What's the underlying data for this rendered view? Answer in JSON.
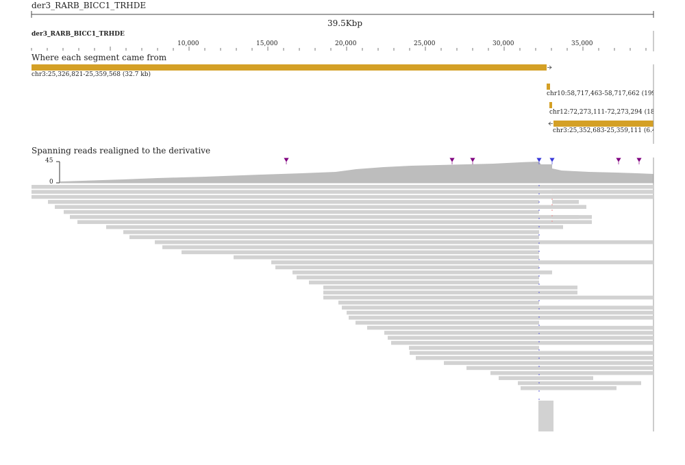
{
  "view_title": "der3_RARB_BICC1_TRHDE",
  "span_label": "39.5Kbp",
  "ref_track": {
    "name": "der3_RARB_BICC1_TRHDE",
    "ticks": [
      "10,000",
      "15,000",
      "20,000",
      "25,000",
      "30,000",
      "35,000"
    ]
  },
  "origin_track": {
    "label": "Where each segment came from",
    "segments": [
      {
        "label": "chr3:25,326,821-25,359,568 (32.7 kb)",
        "strand": "+"
      },
      {
        "label": "chr10:58,717,463-58,717,662 (199",
        "strand": "+"
      },
      {
        "label": "chr12:72,273,111-72,273,294 (183",
        "strand": "+"
      },
      {
        "label": "chr3:25,352,683-25,359,111 (6.4",
        "strand": "-"
      }
    ]
  },
  "reads_track": {
    "label": "Spanning reads realigned to the derivative",
    "coverage_max": "45",
    "coverage_min": "0"
  },
  "colors": {
    "segment": "#d4a026",
    "read": "#d2d2d2",
    "coverage": "#bdbdbd",
    "insertion": "#800080",
    "breakpoint_blue": "#3b3bd9",
    "breakpoint_red": "#e06060"
  }
}
